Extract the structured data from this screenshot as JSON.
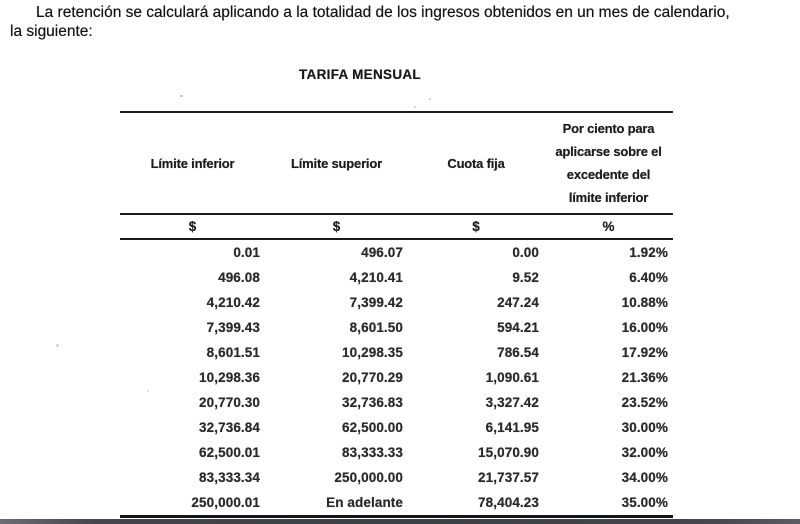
{
  "intro": {
    "text": "La retención se calculará aplicando a la totalidad de los ingresos obtenidos en un mes de calendario,\nla siguiente:"
  },
  "table": {
    "title": "TARIFA MENSUAL",
    "columns": [
      {
        "label": "Límite inferior",
        "unit": "$"
      },
      {
        "label": "Límite superior",
        "unit": "$"
      },
      {
        "label": "Cuota fija",
        "unit": "$"
      },
      {
        "label": "Por ciento para\naplicarse sobre el\nexcedente del\nlímite inferior",
        "unit": "%"
      }
    ],
    "rows": [
      [
        "0.01",
        "496.07",
        "0.00",
        "1.92%"
      ],
      [
        "496.08",
        "4,210.41",
        "9.52",
        "6.40%"
      ],
      [
        "4,210.42",
        "7,399.42",
        "247.24",
        "10.88%"
      ],
      [
        "7,399.43",
        "8,601.50",
        "594.21",
        "16.00%"
      ],
      [
        "8,601.51",
        "10,298.35",
        "786.54",
        "17.92%"
      ],
      [
        "10,298.36",
        "20,770.29",
        "1,090.61",
        "21.36%"
      ],
      [
        "20,770.30",
        "32,736.83",
        "3,327.42",
        "23.52%"
      ],
      [
        "32,736.84",
        "62,500.00",
        "6,141.95",
        "30.00%"
      ],
      [
        "62,500.01",
        "83,333.33",
        "15,070.90",
        "32.00%"
      ],
      [
        "83,333.34",
        "250,000.00",
        "21,737.57",
        "34.00%"
      ],
      [
        "250,000.01",
        "En adelante",
        "78,404.23",
        "35.00%"
      ]
    ]
  },
  "colors": {
    "rule": "#1b1b1b",
    "text": "#1f1f1f",
    "bottom_bar": "#3c4147"
  }
}
